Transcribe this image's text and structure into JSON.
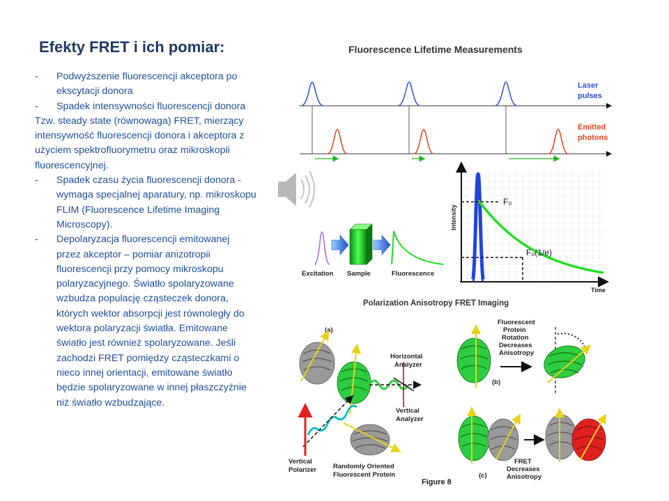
{
  "slide": {
    "title": "Efekty FRET i ich pomiar:",
    "list1": [
      {
        "bullet": "-",
        "text": "Podwyższenie fluorescencji akceptora po ekscytacji donora"
      },
      {
        "bullet": "-",
        "text": "Spadek intensywności fluorescencji donora"
      }
    ],
    "paragraph": "Tzw. steady state (równowaga)  FRET, mierzący intensywność fluorescencji donora i akceptora  z użyciem spektrofluorymetru oraz mikroskopii fluorescencyjnej.",
    "list2": [
      {
        "bullet": "-",
        "text": "Spadek czasu  życia fluorescencji donora -  wymaga specjalnej aparatury, np. mikroskopu FLIM (Fluorescence Lifetime Imaging Microscopy)."
      },
      {
        "bullet": "-",
        "text": "Depolaryzacja fluorescencji emitowanej przez akceptor – pomiar anizotropii fluorescencji przy pomocy mikroskopu polaryzacyjnego.  Światło spolaryzowane wzbudza populację cząsteczek donora, których wektor absorpcji jest równoległy do wektora polaryzacji światła. Emitowane światło jest również spolaryzowane. Jeśli zachodzi FRET pomiędzy cząsteczkami o nieco innej orientacji, emitowane światło będzie spolaryzowane w innej płaszczyźnie niż światło wzbudzające."
      }
    ]
  },
  "lifetime_figure": {
    "title": "Fluorescence Lifetime Measurements",
    "laser_label": [
      "Laser",
      "pulses"
    ],
    "emitted_label": [
      "Emitted",
      "photons"
    ],
    "flow_labels": {
      "excitation": "Excitation",
      "sample": "Sample",
      "fluorescence": "Fluorescence"
    },
    "axis": {
      "y": "Intensity",
      "x": "Time"
    },
    "f0": "F₀",
    "f0e": "F₀(1/e)",
    "colors": {
      "laser": "#2a4fd6",
      "emission": "#e0461c",
      "decay": "#22dd22",
      "excitation": "#a070e0"
    }
  },
  "anisotropy_figure": {
    "title": "Polarization Anisotropy FRET Imaging",
    "panel_a": "(a)",
    "panel_b": "(b)",
    "panel_c": "(c)",
    "horizontal_analyzer": [
      "Horizontal",
      "Analyzer"
    ],
    "vertical_analyzer": [
      "Vertical",
      "Analyzer"
    ],
    "vertical_polarizer": [
      "Vertical",
      "Polarizer"
    ],
    "random_protein": [
      "Randomly Oriented",
      "Fluorescent Protein"
    ],
    "rotation_text": [
      "Fluorescent",
      "Protein",
      "Rotation",
      "Decreases",
      "Anisotropy"
    ],
    "fret_text": [
      "FRET",
      "Decreases",
      "Anisotropy"
    ],
    "figure_label": "Figure 8",
    "colors": {
      "green": "#2ecc40",
      "gray": "#9a9a9a",
      "red": "#e02020",
      "yellow": "#e8d21a"
    }
  }
}
